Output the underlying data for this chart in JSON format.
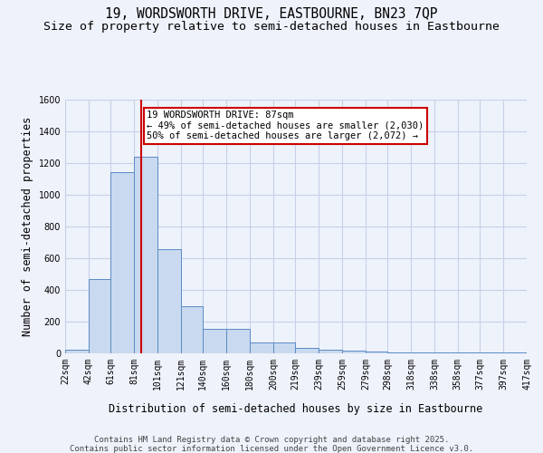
{
  "title": "19, WORDSWORTH DRIVE, EASTBOURNE, BN23 7QP",
  "subtitle": "Size of property relative to semi-detached houses in Eastbourne",
  "xlabel": "Distribution of semi-detached houses by size in Eastbourne",
  "ylabel": "Number of semi-detached properties",
  "bin_edges": [
    22,
    42,
    61,
    81,
    101,
    121,
    140,
    160,
    180,
    200,
    219,
    239,
    259,
    279,
    298,
    318,
    338,
    358,
    377,
    397,
    417
  ],
  "bar_heights": [
    25,
    470,
    1140,
    1240,
    660,
    295,
    155,
    155,
    70,
    70,
    35,
    25,
    15,
    10,
    5,
    5,
    5,
    5,
    5,
    5
  ],
  "bar_color": "#c9d9ef",
  "bar_edge_color": "#5a8ac6",
  "grid_color": "#c8d0e8",
  "background_color": "#eef2fb",
  "property_size": 87,
  "property_label": "19 WORDSWORTH DRIVE: 87sqm",
  "smaller_pct": 49,
  "smaller_count": 2030,
  "larger_pct": 50,
  "larger_count": 2072,
  "vline_color": "#cc0000",
  "annotation_box_color": "#cc0000",
  "ylim": [
    0,
    1600
  ],
  "yticks": [
    0,
    200,
    400,
    600,
    800,
    1000,
    1200,
    1400,
    1600
  ],
  "tick_labels": [
    "22sqm",
    "42sqm",
    "61sqm",
    "81sqm",
    "101sqm",
    "121sqm",
    "140sqm",
    "160sqm",
    "180sqm",
    "200sqm",
    "219sqm",
    "239sqm",
    "259sqm",
    "279sqm",
    "298sqm",
    "318sqm",
    "338sqm",
    "358sqm",
    "377sqm",
    "397sqm",
    "417sqm"
  ],
  "footer_line1": "Contains HM Land Registry data © Crown copyright and database right 2025.",
  "footer_line2": "Contains public sector information licensed under the Open Government Licence v3.0.",
  "title_fontsize": 10.5,
  "subtitle_fontsize": 9.5,
  "axis_label_fontsize": 8.5,
  "tick_fontsize": 7,
  "annotation_fontsize": 7.5,
  "footer_fontsize": 6.5
}
